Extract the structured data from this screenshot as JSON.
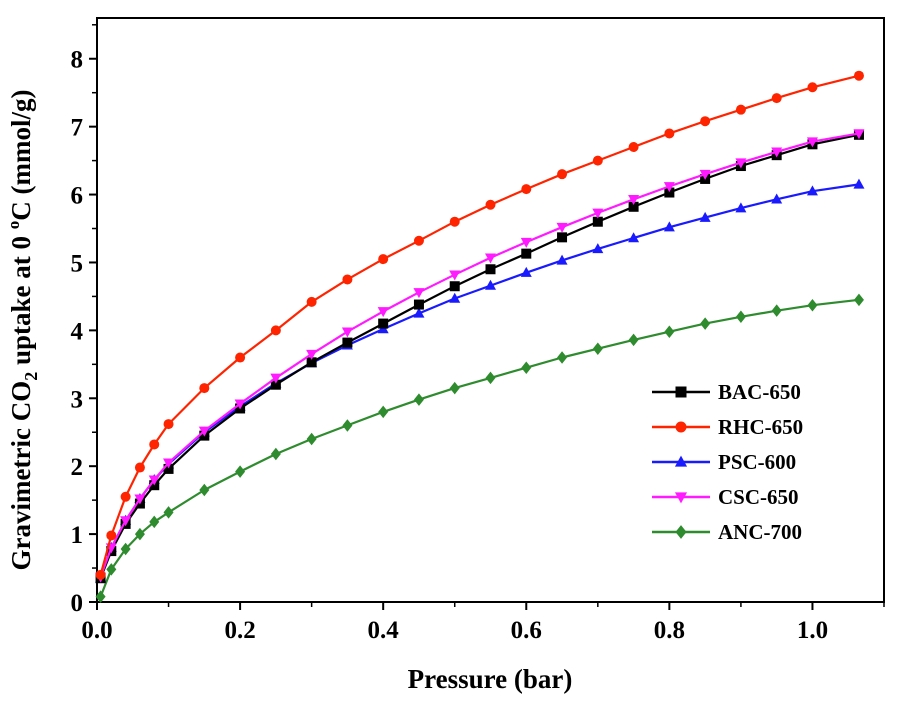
{
  "chart_data": {
    "type": "line",
    "xlabel": "Pressure (bar)",
    "ylabel": {
      "part1": "Gravimetric CO",
      "sub": "2",
      "part2": " uptake at 0 ",
      "sup": "o",
      "part3": "C (mmol/g)"
    },
    "xlim": [
      0,
      1.1
    ],
    "ylim": [
      0,
      8.6
    ],
    "x_ticks": [
      0.0,
      0.2,
      0.4,
      0.6,
      0.8,
      1.0
    ],
    "x_tick_labels": [
      "0.0",
      "0.2",
      "0.4",
      "0.6",
      "0.8",
      "1.0"
    ],
    "y_ticks": [
      0,
      1,
      2,
      3,
      4,
      5,
      6,
      7,
      8
    ],
    "y_tick_labels": [
      "0",
      "1",
      "2",
      "3",
      "4",
      "5",
      "6",
      "7",
      "8"
    ],
    "grid": false,
    "legend_position": "bottom-right",
    "series": [
      {
        "name": "BAC-650",
        "color": "#000000",
        "marker": "square",
        "x": [
          0.005,
          0.02,
          0.04,
          0.06,
          0.08,
          0.1,
          0.15,
          0.2,
          0.25,
          0.3,
          0.35,
          0.4,
          0.45,
          0.5,
          0.55,
          0.6,
          0.65,
          0.7,
          0.75,
          0.8,
          0.85,
          0.9,
          0.95,
          1.0,
          1.065
        ],
        "y": [
          0.35,
          0.75,
          1.15,
          1.45,
          1.72,
          1.96,
          2.45,
          2.85,
          3.2,
          3.53,
          3.82,
          4.1,
          4.38,
          4.65,
          4.9,
          5.13,
          5.37,
          5.6,
          5.82,
          6.03,
          6.23,
          6.42,
          6.58,
          6.74,
          6.88
        ]
      },
      {
        "name": "RHC-650",
        "color": "#ff2400",
        "marker": "circle",
        "x": [
          0.005,
          0.02,
          0.04,
          0.06,
          0.08,
          0.1,
          0.15,
          0.2,
          0.25,
          0.3,
          0.35,
          0.4,
          0.45,
          0.5,
          0.55,
          0.6,
          0.65,
          0.7,
          0.75,
          0.8,
          0.85,
          0.9,
          0.95,
          1.0,
          1.065
        ],
        "y": [
          0.4,
          0.98,
          1.55,
          1.98,
          2.32,
          2.62,
          3.15,
          3.6,
          4.0,
          4.42,
          4.75,
          5.05,
          5.32,
          5.6,
          5.85,
          6.08,
          6.3,
          6.5,
          6.7,
          6.9,
          7.08,
          7.25,
          7.42,
          7.58,
          7.75
        ]
      },
      {
        "name": "PSC-600",
        "color": "#1a1aff",
        "marker": "triangle-up",
        "x": [
          0.005,
          0.02,
          0.04,
          0.06,
          0.08,
          0.1,
          0.15,
          0.2,
          0.25,
          0.3,
          0.35,
          0.4,
          0.45,
          0.5,
          0.55,
          0.6,
          0.65,
          0.7,
          0.75,
          0.8,
          0.85,
          0.9,
          0.95,
          1.0,
          1.065
        ],
        "y": [
          0.35,
          0.8,
          1.2,
          1.52,
          1.8,
          2.03,
          2.5,
          2.88,
          3.22,
          3.52,
          3.78,
          4.02,
          4.25,
          4.47,
          4.66,
          4.85,
          5.03,
          5.2,
          5.36,
          5.52,
          5.66,
          5.8,
          5.93,
          6.05,
          6.15
        ]
      },
      {
        "name": "CSC-650",
        "color": "#ff1aff",
        "marker": "triangle-down",
        "x": [
          0.005,
          0.02,
          0.04,
          0.06,
          0.08,
          0.1,
          0.15,
          0.2,
          0.25,
          0.3,
          0.35,
          0.4,
          0.45,
          0.5,
          0.55,
          0.6,
          0.65,
          0.7,
          0.75,
          0.8,
          0.85,
          0.9,
          0.95,
          1.0,
          1.065
        ],
        "y": [
          0.37,
          0.8,
          1.2,
          1.52,
          1.8,
          2.05,
          2.52,
          2.92,
          3.3,
          3.65,
          3.98,
          4.28,
          4.56,
          4.82,
          5.07,
          5.3,
          5.52,
          5.73,
          5.93,
          6.12,
          6.3,
          6.47,
          6.63,
          6.78,
          6.9
        ]
      },
      {
        "name": "ANC-700",
        "color": "#2e8b2e",
        "marker": "diamond",
        "x": [
          0.005,
          0.02,
          0.04,
          0.06,
          0.08,
          0.1,
          0.15,
          0.2,
          0.25,
          0.3,
          0.35,
          0.4,
          0.45,
          0.5,
          0.55,
          0.6,
          0.65,
          0.7,
          0.75,
          0.8,
          0.85,
          0.9,
          0.95,
          1.0,
          1.065
        ],
        "y": [
          0.08,
          0.48,
          0.78,
          1.0,
          1.18,
          1.32,
          1.65,
          1.92,
          2.18,
          2.4,
          2.6,
          2.8,
          2.98,
          3.15,
          3.3,
          3.45,
          3.6,
          3.73,
          3.86,
          3.98,
          4.1,
          4.2,
          4.29,
          4.37,
          4.45
        ]
      }
    ]
  }
}
